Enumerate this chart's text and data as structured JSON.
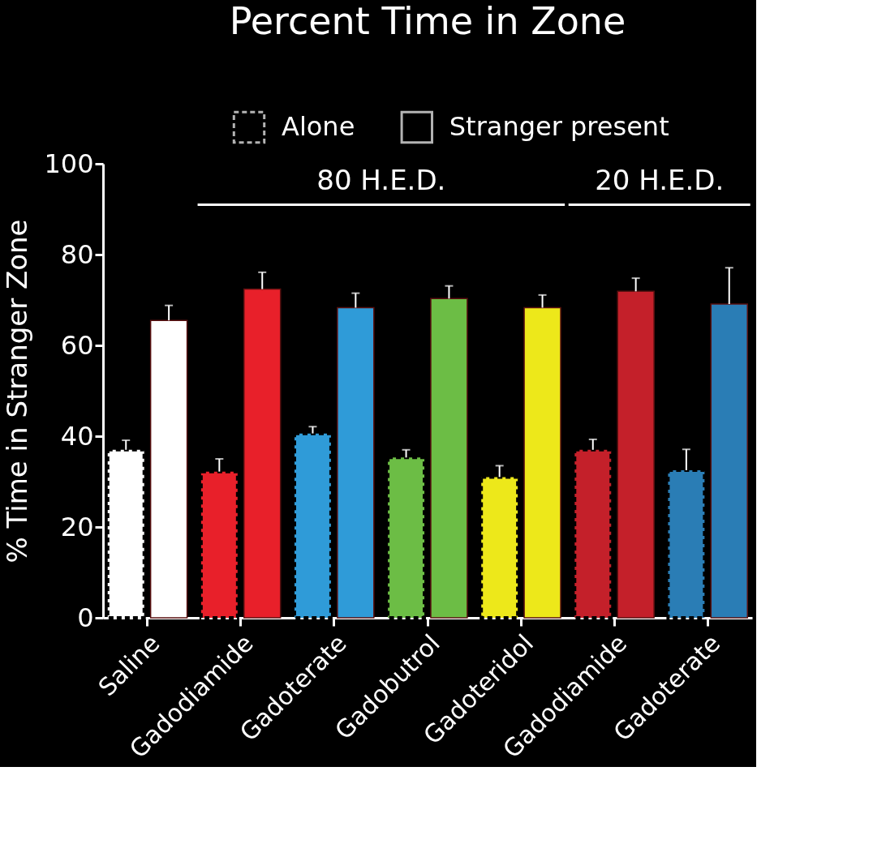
{
  "chart_data": {
    "type": "bar",
    "title": "Percent Time in Zone",
    "ylabel": "% Time in Stranger Zone",
    "categories": [
      "Saline",
      "Gadodiamide",
      "Gadoterate",
      "Gadobutrol",
      "Gadoteridol",
      "Gadodiamide",
      "Gadoterate"
    ],
    "series": [
      {
        "name": "Alone",
        "colors": [
          "#ffffff",
          "#e8202a",
          "#2f9bd8",
          "#6cbd45",
          "#ede81a",
          "#c4202a",
          "#2a7db5"
        ],
        "values": [
          37.0,
          32.2,
          40.6,
          35.3,
          31.0,
          37.0,
          32.5
        ],
        "errors": [
          2.1,
          2.8,
          1.5,
          1.7,
          2.5,
          2.3,
          4.6
        ]
      },
      {
        "name": "Stranger present",
        "colors": [
          "#ffffff",
          "#e8202a",
          "#2f9bd8",
          "#6cbd45",
          "#ede81a",
          "#c4202a",
          "#2a7db5"
        ],
        "values": [
          65.5,
          72.4,
          68.3,
          70.3,
          68.3,
          71.9,
          69.1
        ],
        "errors": [
          3.3,
          3.7,
          3.2,
          2.8,
          2.8,
          2.9,
          8.0
        ]
      }
    ],
    "annotations": [
      "80 H.E.D.",
      "20 H.E.D."
    ],
    "ylim": [
      0,
      100
    ],
    "yticks": [
      0,
      20,
      40,
      60,
      80,
      100
    ],
    "legend": "top",
    "grid": false
  }
}
